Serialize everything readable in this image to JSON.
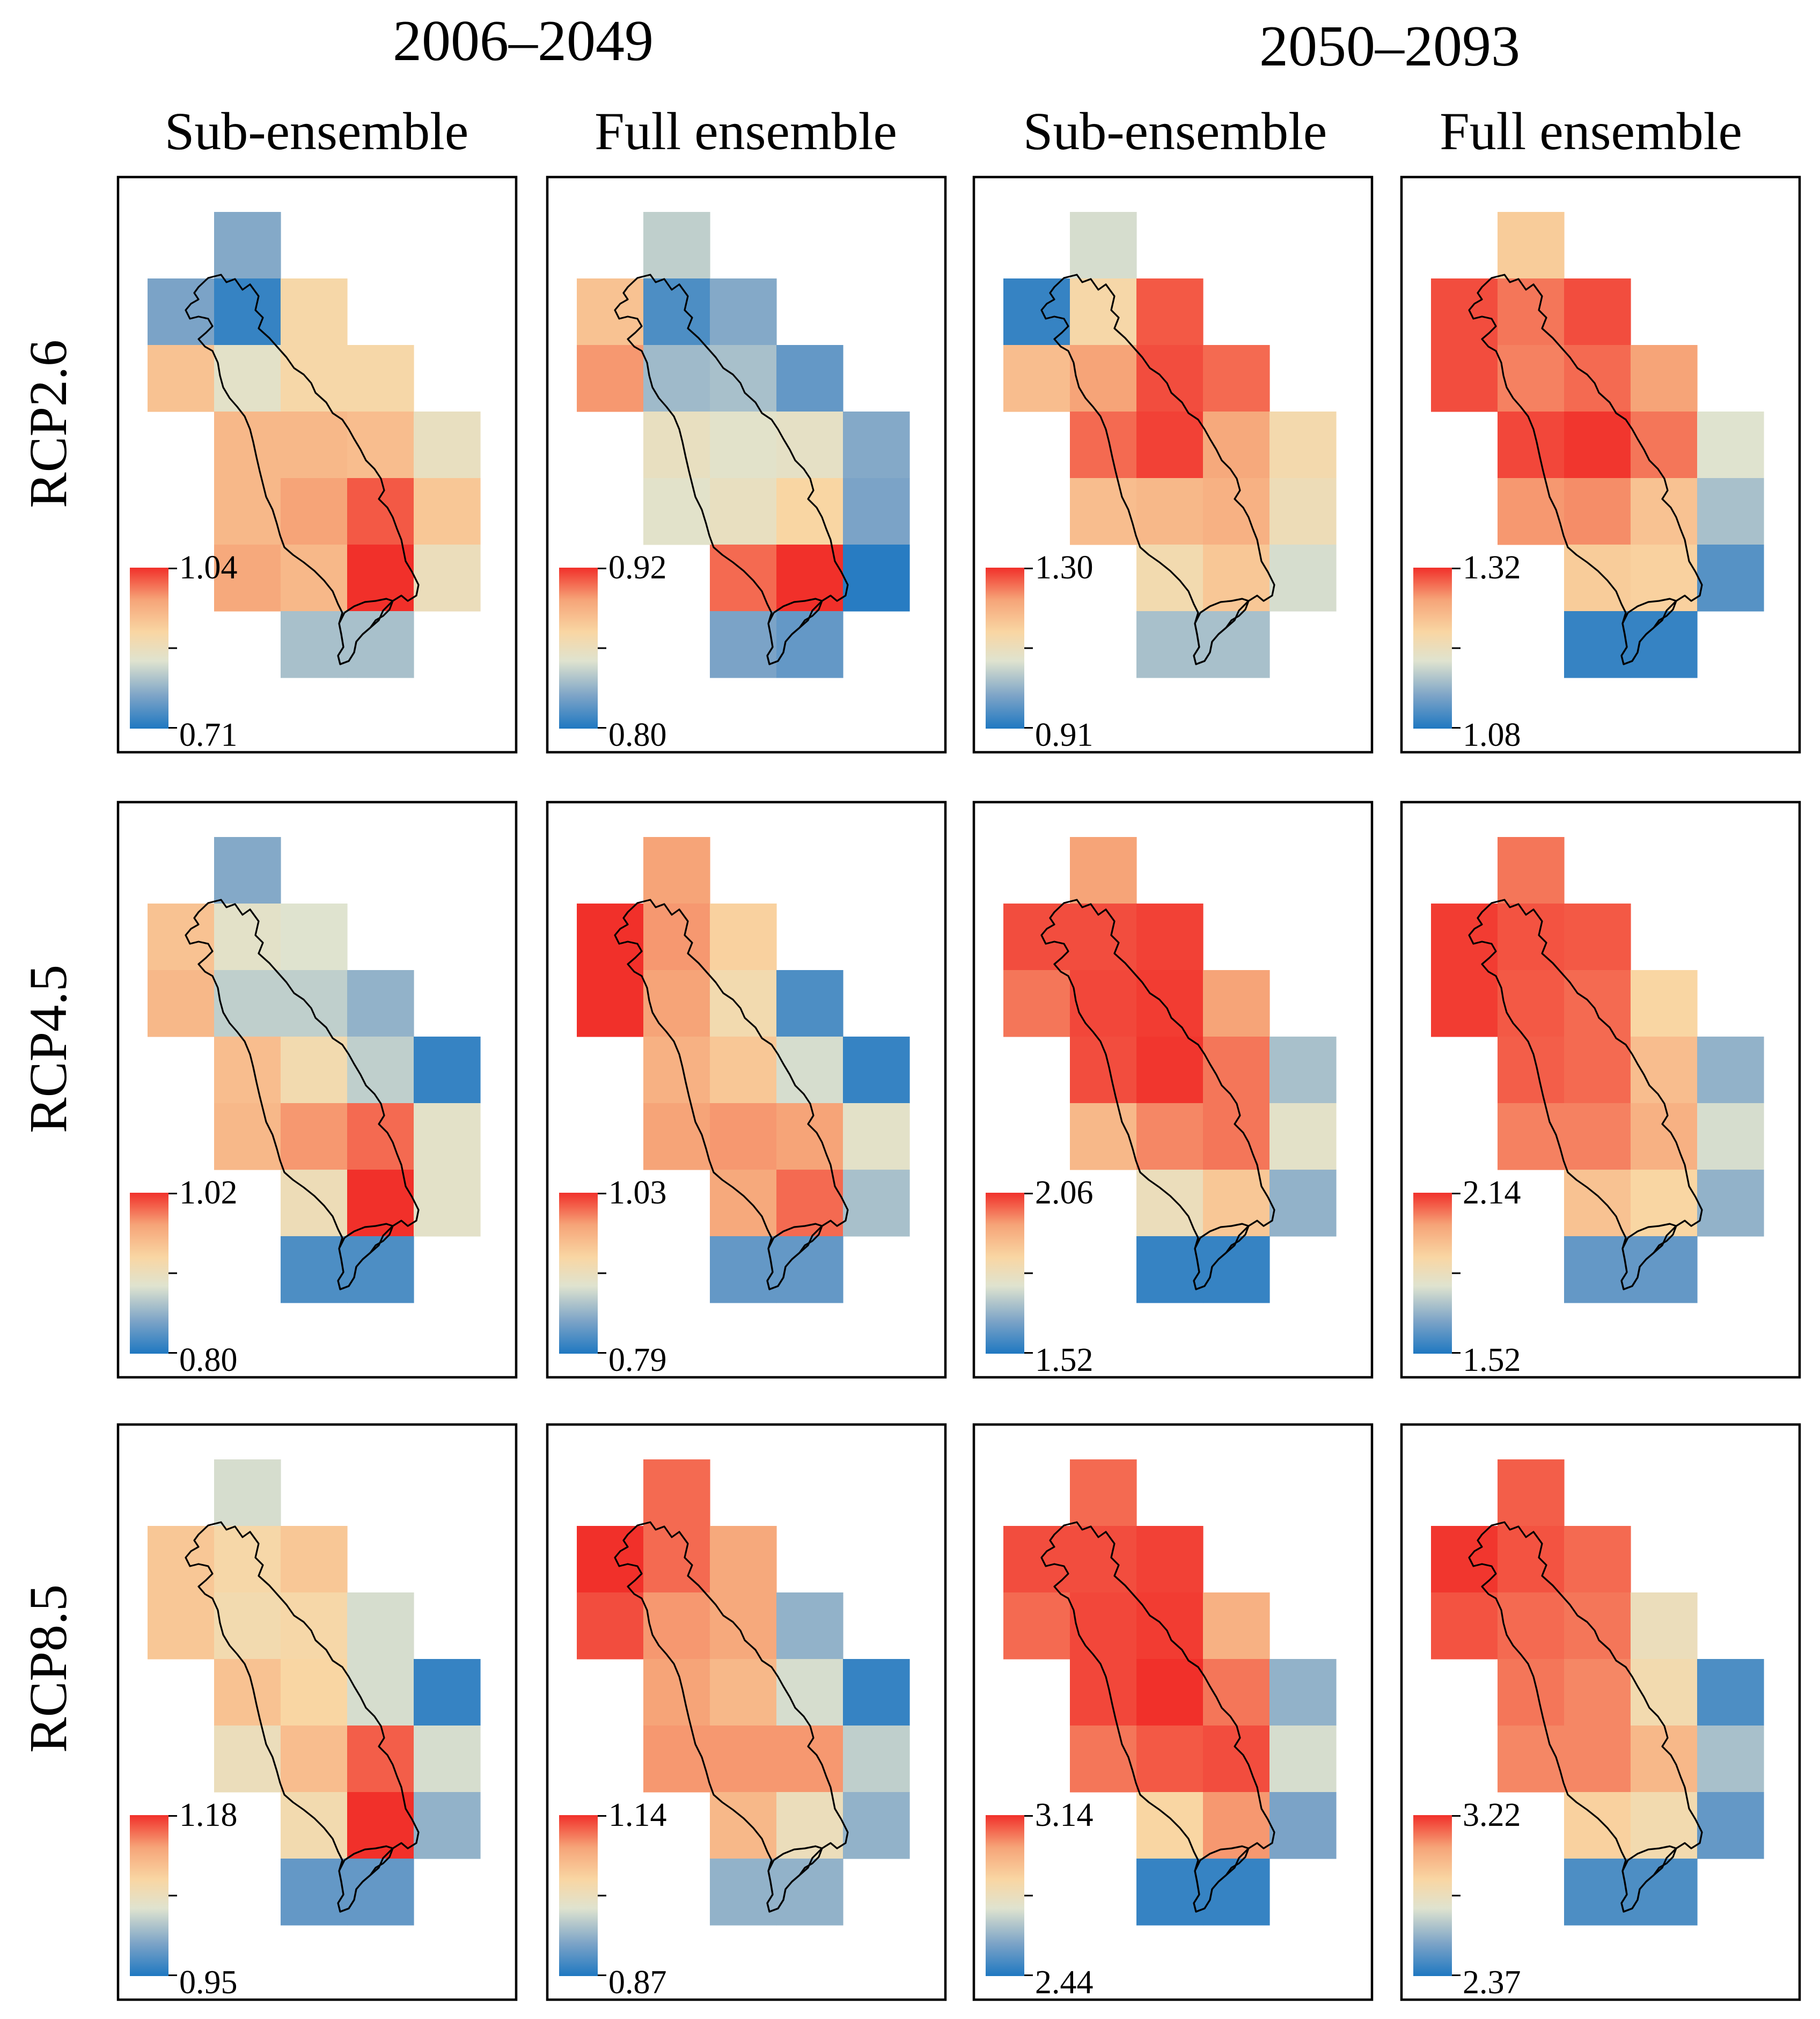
{
  "colors": {
    "low": "#1f78c1",
    "mid": "#e4e3c3",
    "high": "#f1302a",
    "ramp": [
      "#1f78c1",
      "#7ba3c7",
      "#dfe3cf",
      "#f9d6a3",
      "#f6a478",
      "#f1302a"
    ]
  },
  "chart_data": {
    "type": "heatmap",
    "period_titles": [
      "2006–2049",
      "2050–2093"
    ],
    "column_titles": [
      "Sub-ensemble",
      "Full ensemble",
      "Sub-ensemble",
      "Full ensemble"
    ],
    "row_titles": [
      "RCP2.6",
      "RCP4.5",
      "RCP8.5"
    ],
    "value_scale": "normalized 0 (colorbar min) to 1 (colorbar max) per panel",
    "rows": [
      {
        "scenario": "RCP2.6",
        "panels": [
          {
            "period": "2006–2049",
            "ensemble": "Sub-ensemble",
            "colorbar_max": "1.04",
            "colorbar_min": "0.71",
            "cells": [
              [
                null,
                0.22,
                null,
                null,
                null
              ],
              [
                0.2,
                0.05,
                0.58,
                null,
                null
              ],
              [
                0.68,
                0.45,
                0.58,
                0.58,
                null
              ],
              [
                null,
                0.72,
                0.72,
                0.7,
                0.48
              ],
              [
                null,
                0.72,
                0.8,
                0.93,
                0.66
              ],
              [
                null,
                0.78,
                0.72,
                1.0,
                0.5
              ],
              [
                null,
                null,
                0.3,
                0.3,
                null
              ]
            ]
          },
          {
            "period": "2006–2049",
            "ensemble": "Full ensemble",
            "colorbar_max": "0.92",
            "colorbar_min": "0.80",
            "cells": [
              [
                null,
                0.35,
                null,
                null,
                null
              ],
              [
                0.68,
                0.1,
                0.22,
                null,
                null
              ],
              [
                0.82,
                0.28,
                0.3,
                0.15,
                null
              ],
              [
                null,
                0.48,
                0.44,
                0.46,
                0.22
              ],
              [
                null,
                0.44,
                0.48,
                0.6,
                0.2
              ],
              [
                null,
                null,
                0.9,
                1.0,
                0.02
              ],
              [
                null,
                null,
                0.2,
                0.15,
                null
              ]
            ]
          },
          {
            "period": "2050–2093",
            "ensemble": "Sub-ensemble",
            "colorbar_max": "1.30",
            "colorbar_min": "0.91",
            "cells": [
              [
                null,
                0.4,
                null,
                null,
                null
              ],
              [
                0.05,
                0.58,
                0.93,
                null,
                null
              ],
              [
                0.7,
                0.8,
                0.95,
                0.9,
                null
              ],
              [
                null,
                0.9,
                0.97,
                0.78,
                0.56
              ],
              [
                null,
                0.7,
                0.72,
                0.75,
                0.52
              ],
              [
                null,
                null,
                0.55,
                0.66,
                0.4
              ],
              [
                null,
                null,
                0.3,
                0.3,
                null
              ]
            ]
          },
          {
            "period": "2050–2093",
            "ensemble": "Full ensemble",
            "colorbar_max": "1.32",
            "colorbar_min": "1.08",
            "cells": [
              [
                null,
                0.64,
                null,
                null,
                null
              ],
              [
                0.95,
                0.88,
                0.95,
                null,
                null
              ],
              [
                0.95,
                0.86,
                0.9,
                0.8,
                null
              ],
              [
                null,
                0.96,
                0.99,
                0.88,
                0.42
              ],
              [
                null,
                0.82,
                0.84,
                0.68,
                0.3
              ],
              [
                null,
                null,
                0.64,
                0.62,
                0.12
              ],
              [
                null,
                null,
                0.05,
                0.05,
                null
              ]
            ]
          }
        ]
      },
      {
        "scenario": "RCP4.5",
        "panels": [
          {
            "period": "2006–2049",
            "ensemble": "Sub-ensemble",
            "colorbar_max": "1.02",
            "colorbar_min": "0.80",
            "cells": [
              [
                null,
                0.22,
                null,
                null,
                null
              ],
              [
                0.68,
                0.45,
                0.42,
                null,
                null
              ],
              [
                0.72,
                0.35,
                0.35,
                0.25,
                null
              ],
              [
                null,
                0.7,
                0.55,
                0.35,
                0.05
              ],
              [
                null,
                0.72,
                0.82,
                0.9,
                0.45
              ],
              [
                null,
                null,
                0.52,
                1.0,
                0.45
              ],
              [
                null,
                null,
                0.1,
                0.1,
                null
              ]
            ]
          },
          {
            "period": "2006–2049",
            "ensemble": "Full ensemble",
            "colorbar_max": "1.03",
            "colorbar_min": "0.79",
            "cells": [
              [
                null,
                0.8,
                null,
                null,
                null
              ],
              [
                1.0,
                0.82,
                0.62,
                null,
                null
              ],
              [
                1.0,
                0.8,
                0.55,
                0.1,
                null
              ],
              [
                null,
                0.75,
                0.66,
                0.4,
                0.05
              ],
              [
                null,
                0.8,
                0.82,
                0.8,
                0.45
              ],
              [
                null,
                null,
                0.78,
                0.9,
                0.3
              ],
              [
                null,
                null,
                0.15,
                0.15,
                null
              ]
            ]
          },
          {
            "period": "2050–2093",
            "ensemble": "Sub-ensemble",
            "colorbar_max": "2.06",
            "colorbar_min": "1.52",
            "cells": [
              [
                null,
                0.8,
                null,
                null,
                null
              ],
              [
                0.95,
                0.95,
                0.97,
                null,
                null
              ],
              [
                0.88,
                0.96,
                0.98,
                0.8,
                null
              ],
              [
                null,
                0.95,
                0.99,
                0.88,
                0.3
              ],
              [
                null,
                0.72,
                0.85,
                0.88,
                0.45
              ],
              [
                null,
                null,
                0.5,
                0.66,
                0.25
              ],
              [
                null,
                null,
                0.05,
                0.05,
                null
              ]
            ]
          },
          {
            "period": "2050–2093",
            "ensemble": "Full ensemble",
            "colorbar_max": "2.14",
            "colorbar_min": "1.52",
            "cells": [
              [
                null,
                0.88,
                null,
                null,
                null
              ],
              [
                0.98,
                0.94,
                0.93,
                null,
                null
              ],
              [
                0.98,
                0.93,
                0.9,
                0.6,
                null
              ],
              [
                null,
                0.92,
                0.9,
                0.7,
                0.25
              ],
              [
                null,
                0.86,
                0.86,
                0.75,
                0.4
              ],
              [
                null,
                null,
                0.68,
                0.6,
                0.25
              ],
              [
                null,
                null,
                0.15,
                0.15,
                null
              ]
            ]
          }
        ]
      },
      {
        "scenario": "RCP8.5",
        "panels": [
          {
            "period": "2006–2049",
            "ensemble": "Sub-ensemble",
            "colorbar_max": "1.18",
            "colorbar_min": "0.95",
            "cells": [
              [
                null,
                0.4,
                null,
                null,
                null
              ],
              [
                0.66,
                0.58,
                0.66,
                null,
                null
              ],
              [
                0.66,
                0.55,
                0.58,
                0.4,
                null
              ],
              [
                null,
                0.68,
                0.6,
                0.4,
                0.05
              ],
              [
                null,
                0.5,
                0.7,
                0.92,
                0.4
              ],
              [
                null,
                null,
                0.55,
                1.0,
                0.25
              ],
              [
                null,
                null,
                0.15,
                0.15,
                null
              ]
            ]
          },
          {
            "period": "2006–2049",
            "ensemble": "Full ensemble",
            "colorbar_max": "1.14",
            "colorbar_min": "0.87",
            "cells": [
              [
                null,
                0.9,
                null,
                null,
                null
              ],
              [
                1.0,
                0.9,
                0.78,
                null,
                null
              ],
              [
                0.95,
                0.82,
                0.78,
                0.25,
                null
              ],
              [
                null,
                0.8,
                0.72,
                0.4,
                0.05
              ],
              [
                null,
                0.82,
                0.82,
                0.82,
                0.35
              ],
              [
                null,
                null,
                0.72,
                0.5,
                0.25
              ],
              [
                null,
                null,
                0.25,
                0.25,
                null
              ]
            ]
          },
          {
            "period": "2050–2093",
            "ensemble": "Sub-ensemble",
            "colorbar_max": "3.14",
            "colorbar_min": "2.44",
            "cells": [
              [
                null,
                0.9,
                null,
                null,
                null
              ],
              [
                0.95,
                0.95,
                0.97,
                null,
                null
              ],
              [
                0.9,
                0.96,
                0.98,
                0.75,
                null
              ],
              [
                null,
                0.96,
                1.0,
                0.88,
                0.25
              ],
              [
                null,
                0.88,
                0.93,
                0.95,
                0.4
              ],
              [
                null,
                null,
                0.6,
                0.82,
                0.2
              ],
              [
                null,
                null,
                0.05,
                0.05,
                null
              ]
            ]
          },
          {
            "period": "2050–2093",
            "ensemble": "Full ensemble",
            "colorbar_max": "3.22",
            "colorbar_min": "2.37",
            "cells": [
              [
                null,
                0.92,
                null,
                null,
                null
              ],
              [
                0.99,
                0.94,
                0.9,
                null,
                null
              ],
              [
                0.94,
                0.9,
                0.88,
                0.5,
                null
              ],
              [
                null,
                0.88,
                0.85,
                0.55,
                0.1
              ],
              [
                null,
                0.85,
                0.85,
                0.72,
                0.3
              ],
              [
                null,
                null,
                0.62,
                0.55,
                0.15
              ],
              [
                null,
                null,
                0.1,
                0.1,
                null
              ]
            ]
          }
        ]
      }
    ]
  }
}
